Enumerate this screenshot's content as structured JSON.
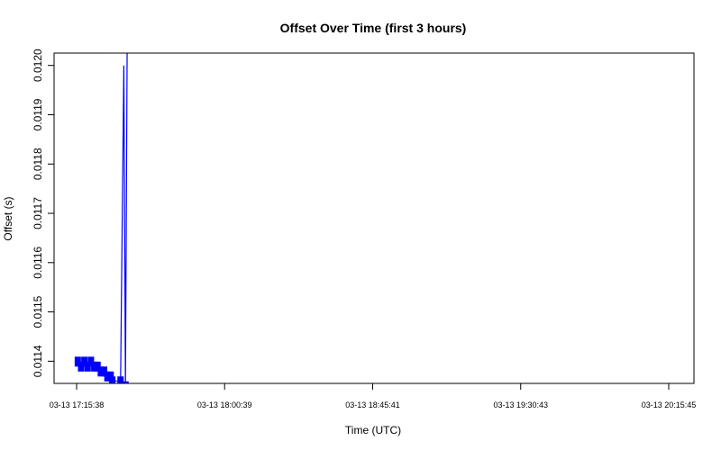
{
  "chart_data": {
    "type": "line",
    "title": "Offset Over Time (first 3 hours)",
    "xlabel": "Time (UTC)",
    "ylabel": "Offset (s)",
    "x_ticks": [
      "03-13 17:15:38",
      "03-13 18:00:39",
      "03-13 18:45:41",
      "03-13 19:30:43",
      "03-13 20:15:45"
    ],
    "y_ticks": [
      "0.0114",
      "0.0115",
      "0.0116",
      "0.0117",
      "0.0118",
      "0.0119",
      "0.0120"
    ],
    "xlim": [
      "03-13 17:15:38",
      "03-13 20:15:45"
    ],
    "ylim": [
      0.011355,
      0.012025
    ],
    "grid": false,
    "series": [
      {
        "color": "#0000ff",
        "x": [
          "03-13 17:16:00",
          "03-13 17:17:00",
          "03-13 17:18:00",
          "03-13 17:19:00",
          "03-13 17:20:00",
          "03-13 17:21:00",
          "03-13 17:22:00",
          "03-13 17:23:00",
          "03-13 17:24:00",
          "03-13 17:25:00",
          "03-13 17:26:00",
          "03-13 17:26:30",
          "03-13 17:29:00",
          "03-13 17:30:00",
          "03-13 17:30:30",
          "03-13 17:31:00"
        ],
        "y": [
          0.0114,
          0.01139,
          0.0114,
          0.01139,
          0.0114,
          0.01139,
          0.01139,
          0.01138,
          0.01138,
          0.01137,
          0.01137,
          0.01136,
          0.01136,
          0.012,
          0.01135,
          0.01204
        ]
      }
    ]
  }
}
